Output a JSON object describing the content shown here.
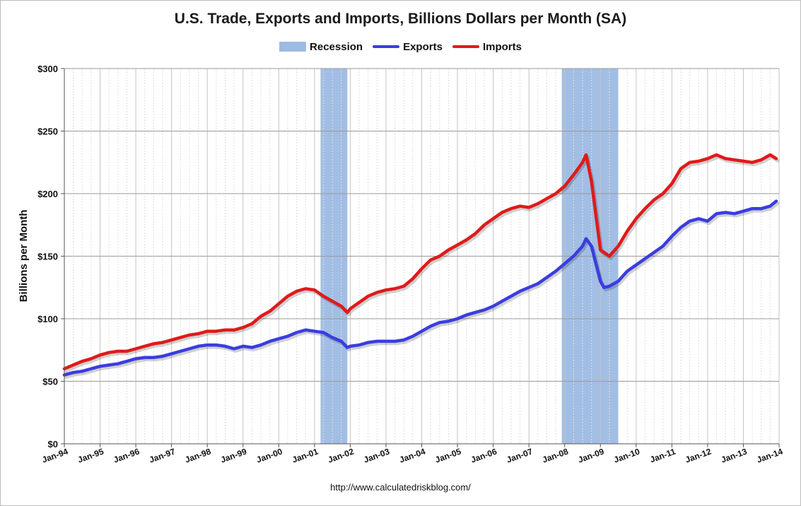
{
  "chart_data": {
    "type": "line",
    "title": "U.S. Trade, Exports and Imports, Billions Dollars per Month (SA)",
    "ylabel": "Billions per Month",
    "xlabel": "",
    "source": "http://www.calculatedriskblog.com/",
    "ylim": [
      0,
      300
    ],
    "y_ticks": [
      0,
      50,
      100,
      150,
      200,
      250,
      300
    ],
    "y_tick_labels": [
      "$0",
      "$50",
      "$100",
      "$150",
      "$200",
      "$250",
      "$300"
    ],
    "xlim": [
      1994.0,
      2014.0
    ],
    "x_tick_years": [
      1994,
      1995,
      1996,
      1997,
      1998,
      1999,
      2000,
      2001,
      2002,
      2003,
      2004,
      2005,
      2006,
      2007,
      2008,
      2009,
      2010,
      2011,
      2012,
      2013,
      2014
    ],
    "x_tick_labels": [
      "Jan-94",
      "Jan-95",
      "Jan-96",
      "Jan-97",
      "Jan-98",
      "Jan-99",
      "Jan-00",
      "Jan-01",
      "Jan-02",
      "Jan-03",
      "Jan-04",
      "Jan-05",
      "Jan-06",
      "Jan-07",
      "Jan-08",
      "Jan-09",
      "Jan-10",
      "Jan-11",
      "Jan-12",
      "Jan-13",
      "Jan-14"
    ],
    "grid": true,
    "legend": {
      "placement": "top-center",
      "items": [
        {
          "label": "Recession",
          "kind": "box",
          "color": "#9dbbe3"
        },
        {
          "label": "Exports",
          "kind": "line",
          "color": "#3a3de0"
        },
        {
          "label": "Imports",
          "kind": "line",
          "color": "#e01a1a"
        }
      ]
    },
    "recessions": [
      {
        "start": 2001.17,
        "end": 2001.92
      },
      {
        "start": 2007.92,
        "end": 2009.5
      }
    ],
    "series": [
      {
        "name": "Exports",
        "color": "#3a3de0",
        "x": [
          1994.0,
          1994.25,
          1994.5,
          1994.75,
          1995.0,
          1995.25,
          1995.5,
          1995.75,
          1996.0,
          1996.25,
          1996.5,
          1996.75,
          1997.0,
          1997.25,
          1997.5,
          1997.75,
          1998.0,
          1998.25,
          1998.5,
          1998.75,
          1999.0,
          1999.25,
          1999.5,
          1999.75,
          2000.0,
          2000.25,
          2000.5,
          2000.75,
          2001.0,
          2001.25,
          2001.5,
          2001.75,
          2001.92,
          2002.0,
          2002.25,
          2002.5,
          2002.75,
          2003.0,
          2003.25,
          2003.5,
          2003.75,
          2004.0,
          2004.25,
          2004.5,
          2004.75,
          2005.0,
          2005.25,
          2005.5,
          2005.75,
          2006.0,
          2006.25,
          2006.5,
          2006.75,
          2007.0,
          2007.25,
          2007.5,
          2007.75,
          2008.0,
          2008.25,
          2008.5,
          2008.6,
          2008.75,
          2009.0,
          2009.1,
          2009.25,
          2009.5,
          2009.75,
          2010.0,
          2010.25,
          2010.5,
          2010.75,
          2011.0,
          2011.25,
          2011.5,
          2011.75,
          2012.0,
          2012.25,
          2012.5,
          2012.75,
          2013.0,
          2013.25,
          2013.5,
          2013.75,
          2013.92
        ],
        "values": [
          55,
          57,
          58,
          60,
          62,
          63,
          64,
          66,
          68,
          69,
          69,
          70,
          72,
          74,
          76,
          78,
          79,
          79,
          78,
          76,
          78,
          77,
          79,
          82,
          84,
          86,
          89,
          91,
          90,
          89,
          85,
          82,
          77,
          78,
          79,
          81,
          82,
          82,
          82,
          83,
          86,
          90,
          94,
          97,
          98,
          100,
          103,
          105,
          107,
          110,
          114,
          118,
          122,
          125,
          128,
          133,
          138,
          144,
          150,
          158,
          164,
          158,
          130,
          125,
          126,
          130,
          138,
          143,
          148,
          153,
          158,
          166,
          173,
          178,
          180,
          178,
          184,
          185,
          184,
          186,
          188,
          188,
          190,
          194
        ]
      },
      {
        "name": "Imports",
        "color": "#e01a1a",
        "x": [
          1994.0,
          1994.25,
          1994.5,
          1994.75,
          1995.0,
          1995.25,
          1995.5,
          1995.75,
          1996.0,
          1996.25,
          1996.5,
          1996.75,
          1997.0,
          1997.25,
          1997.5,
          1997.75,
          1998.0,
          1998.25,
          1998.5,
          1998.75,
          1999.0,
          1999.25,
          1999.5,
          1999.75,
          2000.0,
          2000.25,
          2000.5,
          2000.75,
          2001.0,
          2001.25,
          2001.5,
          2001.75,
          2001.92,
          2002.0,
          2002.25,
          2002.5,
          2002.75,
          2003.0,
          2003.25,
          2003.5,
          2003.75,
          2004.0,
          2004.25,
          2004.5,
          2004.75,
          2005.0,
          2005.25,
          2005.5,
          2005.75,
          2006.0,
          2006.25,
          2006.5,
          2006.75,
          2007.0,
          2007.25,
          2007.5,
          2007.75,
          2008.0,
          2008.25,
          2008.5,
          2008.6,
          2008.75,
          2009.0,
          2009.25,
          2009.5,
          2009.75,
          2010.0,
          2010.25,
          2010.5,
          2010.75,
          2011.0,
          2011.25,
          2011.5,
          2011.75,
          2012.0,
          2012.25,
          2012.5,
          2012.75,
          2013.0,
          2013.25,
          2013.5,
          2013.75,
          2013.92
        ],
        "values": [
          60,
          63,
          66,
          68,
          71,
          73,
          74,
          74,
          76,
          78,
          80,
          81,
          83,
          85,
          87,
          88,
          90,
          90,
          91,
          91,
          93,
          96,
          102,
          106,
          112,
          118,
          122,
          124,
          123,
          118,
          114,
          110,
          105,
          108,
          113,
          118,
          121,
          123,
          124,
          126,
          132,
          140,
          147,
          150,
          155,
          159,
          163,
          168,
          175,
          180,
          185,
          188,
          190,
          189,
          192,
          196,
          200,
          206,
          215,
          225,
          231,
          210,
          155,
          150,
          158,
          170,
          180,
          188,
          195,
          200,
          208,
          220,
          225,
          226,
          228,
          231,
          228,
          227,
          226,
          225,
          227,
          231,
          228
        ]
      }
    ]
  }
}
